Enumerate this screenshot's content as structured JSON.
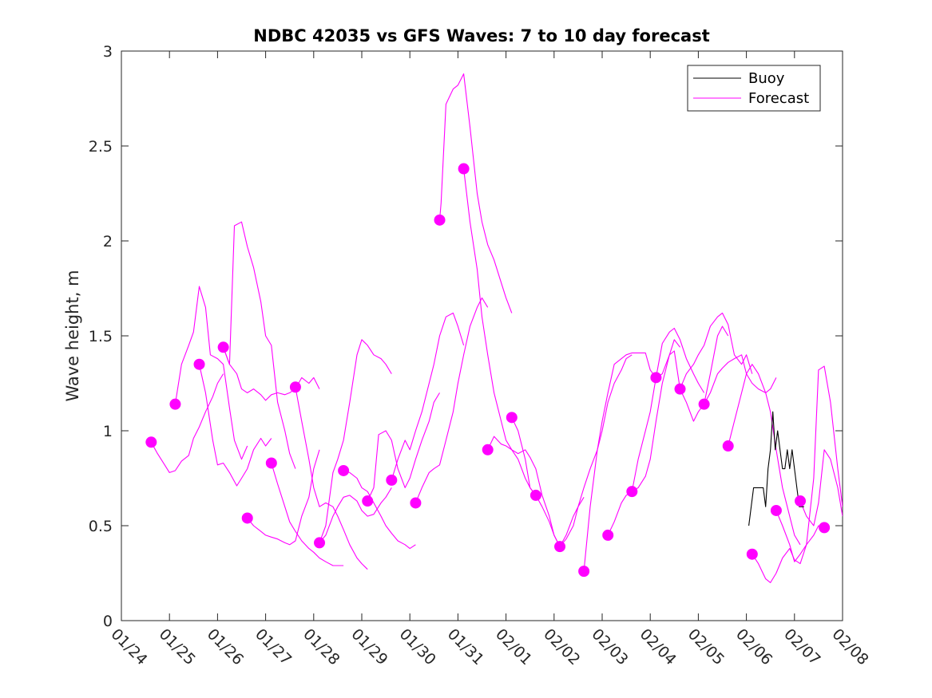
{
  "chart_data": {
    "type": "line",
    "title": "NDBC 42035 vs GFS Waves: 7 to 10 day forecast",
    "xlabel": "",
    "ylabel": "Wave height, m",
    "xlim": [
      0,
      15
    ],
    "ylim": [
      0,
      3
    ],
    "x_tick_labels": [
      "01/24",
      "01/25",
      "01/26",
      "01/27",
      "01/28",
      "01/29",
      "01/30",
      "01/31",
      "02/01",
      "02/02",
      "02/03",
      "02/04",
      "02/05",
      "02/06",
      "02/07",
      "02/08"
    ],
    "y_ticks": [
      0,
      0.5,
      1,
      1.5,
      2,
      2.5,
      3
    ],
    "y_tick_labels": [
      "0",
      "0.5",
      "1",
      "1.5",
      "2",
      "2.5",
      "3"
    ],
    "legend": {
      "placement": "top-right",
      "entries": [
        {
          "name": "Buoy",
          "color": "#000000"
        },
        {
          "name": "Forecast",
          "color": "#ff00ff"
        }
      ]
    },
    "colors": {
      "buoy": "#000000",
      "forecast": "#ff00ff"
    },
    "start_markers": {
      "name": "Forecast start",
      "x": [
        0.62,
        1.12,
        1.62,
        2.12,
        2.62,
        3.12,
        3.62,
        4.12,
        4.62,
        5.12,
        5.62,
        6.12,
        6.62,
        7.12,
        7.62,
        8.12,
        8.62,
        9.12,
        9.62,
        10.12,
        10.62,
        11.12,
        11.62,
        12.12,
        12.62,
        13.12,
        13.62,
        14.12,
        14.62
      ],
      "y": [
        0.94,
        1.14,
        1.35,
        1.44,
        0.54,
        0.83,
        1.23,
        0.41,
        0.79,
        0.63,
        0.74,
        0.62,
        2.11,
        2.38,
        0.9,
        1.07,
        0.66,
        0.39,
        0.26,
        0.45,
        0.68,
        1.28,
        1.22,
        1.14,
        0.92,
        0.35,
        0.58,
        0.63,
        0.49
      ]
    },
    "series": [
      {
        "name": "Forecast",
        "x": [
          0.62,
          0.75,
          0.9,
          1.0,
          1.12,
          1.25,
          1.4,
          1.5,
          1.62,
          1.75,
          1.9,
          2.0,
          2.12
        ],
        "y": [
          0.94,
          0.88,
          0.82,
          0.78,
          0.79,
          0.84,
          0.87,
          0.96,
          1.02,
          1.1,
          1.18,
          1.25,
          1.3
        ]
      },
      {
        "name": "Forecast",
        "x": [
          1.12,
          1.25,
          1.4,
          1.5,
          1.62,
          1.75,
          1.85,
          2.0,
          2.12,
          2.25,
          2.35,
          2.5,
          2.62
        ],
        "y": [
          1.14,
          1.35,
          1.45,
          1.52,
          1.76,
          1.65,
          1.4,
          1.38,
          1.35,
          1.12,
          0.95,
          0.85,
          0.92
        ]
      },
      {
        "name": "Forecast",
        "x": [
          1.62,
          1.75,
          1.9,
          2.0,
          2.12,
          2.25,
          2.4,
          2.5,
          2.62,
          2.75,
          2.9,
          3.0,
          3.12
        ],
        "y": [
          1.35,
          1.2,
          0.95,
          0.82,
          0.83,
          0.78,
          0.71,
          0.75,
          0.8,
          0.9,
          0.96,
          0.92,
          0.96
        ]
      },
      {
        "name": "Forecast",
        "x": [
          2.12,
          2.25,
          2.35,
          2.5,
          2.62,
          2.75,
          2.9,
          3.0,
          3.12,
          3.25,
          3.4,
          3.5,
          3.62
        ],
        "y": [
          1.44,
          1.35,
          2.08,
          2.1,
          1.97,
          1.86,
          1.68,
          1.5,
          1.45,
          1.15,
          1.0,
          0.88,
          0.8
        ]
      },
      {
        "name": "Forecast",
        "x": [
          2.12,
          2.25,
          2.4,
          2.5,
          2.62,
          2.75,
          2.9,
          3.0,
          3.12,
          3.25,
          3.4,
          3.5,
          3.62,
          3.75,
          3.9,
          4.0,
          4.12
        ],
        "y": [
          1.44,
          1.35,
          1.3,
          1.22,
          1.2,
          1.22,
          1.19,
          1.16,
          1.19,
          1.2,
          1.19,
          1.2,
          1.22,
          1.28,
          1.25,
          1.28,
          1.22
        ]
      },
      {
        "name": "Forecast",
        "x": [
          2.62,
          2.75,
          2.9,
          3.0,
          3.12,
          3.25,
          3.4,
          3.5,
          3.62,
          3.75,
          3.9,
          4.0,
          4.12
        ],
        "y": [
          0.54,
          0.5,
          0.47,
          0.45,
          0.44,
          0.43,
          0.41,
          0.4,
          0.42,
          0.55,
          0.65,
          0.8,
          0.9
        ]
      },
      {
        "name": "Forecast",
        "x": [
          3.12,
          3.25,
          3.4,
          3.5,
          3.62,
          3.75,
          3.9,
          4.0,
          4.12,
          4.25,
          4.4,
          4.5,
          4.62
        ],
        "y": [
          0.83,
          0.72,
          0.6,
          0.52,
          0.47,
          0.42,
          0.38,
          0.36,
          0.33,
          0.31,
          0.29,
          0.29,
          0.29
        ]
      },
      {
        "name": "Forecast",
        "x": [
          3.62,
          3.75,
          3.9,
          4.0,
          4.12,
          4.25,
          4.4,
          4.5,
          4.62,
          4.75,
          4.9,
          5.0,
          5.12
        ],
        "y": [
          1.23,
          1.05,
          0.85,
          0.7,
          0.6,
          0.62,
          0.6,
          0.55,
          0.48,
          0.4,
          0.33,
          0.3,
          0.27
        ]
      },
      {
        "name": "Forecast",
        "x": [
          4.12,
          4.25,
          4.4,
          4.5,
          4.62,
          4.75,
          4.9,
          5.0,
          5.12,
          5.25,
          5.4,
          5.5,
          5.62
        ],
        "y": [
          0.41,
          0.45,
          0.55,
          0.6,
          0.65,
          0.66,
          0.63,
          0.58,
          0.55,
          0.56,
          0.62,
          0.65,
          0.7
        ]
      },
      {
        "name": "Forecast",
        "x": [
          4.12,
          4.25,
          4.4,
          4.5,
          4.62,
          4.75,
          4.9,
          5.0,
          5.12,
          5.25,
          5.4,
          5.5,
          5.62
        ],
        "y": [
          0.41,
          0.5,
          0.78,
          0.85,
          0.95,
          1.15,
          1.4,
          1.48,
          1.45,
          1.4,
          1.38,
          1.35,
          1.3
        ]
      },
      {
        "name": "Forecast",
        "x": [
          4.62,
          4.75,
          4.9,
          5.0,
          5.12,
          5.25,
          5.4,
          5.5,
          5.62,
          5.75,
          5.9,
          6.0,
          6.12
        ],
        "y": [
          0.79,
          0.78,
          0.75,
          0.7,
          0.68,
          0.62,
          0.55,
          0.5,
          0.46,
          0.42,
          0.4,
          0.38,
          0.4
        ]
      },
      {
        "name": "Forecast",
        "x": [
          5.12,
          5.25,
          5.35,
          5.5,
          5.62,
          5.75,
          5.9,
          6.0,
          6.12,
          6.25,
          6.4,
          6.5,
          6.62
        ],
        "y": [
          0.63,
          0.7,
          0.98,
          1.0,
          0.95,
          0.8,
          0.7,
          0.75,
          0.85,
          0.95,
          1.05,
          1.15,
          1.2
        ]
      },
      {
        "name": "Forecast",
        "x": [
          5.62,
          5.75,
          5.9,
          6.0,
          6.12,
          6.25,
          6.4,
          6.5,
          6.62,
          6.75,
          6.9,
          7.0,
          7.12
        ],
        "y": [
          0.74,
          0.85,
          0.95,
          0.9,
          1.0,
          1.1,
          1.25,
          1.35,
          1.5,
          1.6,
          1.62,
          1.55,
          1.45
        ]
      },
      {
        "name": "Forecast",
        "x": [
          6.12,
          6.25,
          6.4,
          6.5,
          6.62,
          6.75,
          6.9,
          7.0,
          7.12,
          7.25,
          7.4,
          7.5,
          7.62
        ],
        "y": [
          0.62,
          0.7,
          0.78,
          0.8,
          0.82,
          0.95,
          1.1,
          1.25,
          1.4,
          1.55,
          1.65,
          1.7,
          1.65
        ]
      },
      {
        "name": "Forecast",
        "x": [
          6.62,
          6.65,
          6.75,
          6.9,
          7.0,
          7.12,
          7.25,
          7.4,
          7.5,
          7.62,
          7.75,
          7.9,
          8.0,
          8.12
        ],
        "y": [
          2.11,
          2.2,
          2.72,
          2.8,
          2.82,
          2.88,
          2.6,
          2.25,
          2.1,
          1.98,
          1.9,
          1.78,
          1.7,
          1.62
        ]
      },
      {
        "name": "Forecast",
        "x": [
          7.12,
          7.25,
          7.4,
          7.5,
          7.62,
          7.75,
          7.9,
          8.0,
          8.12,
          8.25,
          8.4,
          8.5,
          8.62
        ],
        "y": [
          2.38,
          2.1,
          1.85,
          1.6,
          1.4,
          1.2,
          1.05,
          0.95,
          0.9,
          0.85,
          0.75,
          0.7,
          0.66
        ]
      },
      {
        "name": "Forecast",
        "x": [
          7.62,
          7.75,
          7.9,
          8.0,
          8.12,
          8.25,
          8.4,
          8.5,
          8.62,
          8.75,
          8.9,
          9.0,
          9.12
        ],
        "y": [
          0.9,
          0.97,
          0.93,
          0.92,
          0.9,
          0.88,
          0.9,
          0.86,
          0.8,
          0.66,
          0.55,
          0.45,
          0.39
        ]
      },
      {
        "name": "Forecast",
        "x": [
          8.12,
          8.25,
          8.4,
          8.5,
          8.62,
          8.75,
          8.9,
          9.0,
          9.12,
          9.25,
          9.4,
          9.5,
          9.62
        ],
        "y": [
          1.07,
          1.0,
          0.85,
          0.7,
          0.66,
          0.6,
          0.52,
          0.45,
          0.39,
          0.43,
          0.5,
          0.6,
          0.65
        ]
      },
      {
        "name": "Forecast",
        "x": [
          9.12,
          9.25,
          9.4,
          9.5,
          9.62,
          9.75,
          9.9,
          10.0,
          10.12,
          10.25,
          10.4,
          10.5,
          10.62
        ],
        "y": [
          0.39,
          0.45,
          0.55,
          0.6,
          0.7,
          0.8,
          0.9,
          1.0,
          1.15,
          1.25,
          1.32,
          1.38,
          1.4
        ]
      },
      {
        "name": "Forecast",
        "x": [
          9.62,
          9.75,
          9.9,
          10.0,
          10.12,
          10.25,
          10.4,
          10.5,
          10.62,
          10.75,
          10.9,
          11.0,
          11.12
        ],
        "y": [
          0.26,
          0.6,
          0.9,
          1.05,
          1.2,
          1.35,
          1.38,
          1.4,
          1.41,
          1.41,
          1.41,
          1.32,
          1.28
        ]
      },
      {
        "name": "Forecast",
        "x": [
          10.12,
          10.25,
          10.4,
          10.5,
          10.62,
          10.75,
          10.9,
          11.0,
          11.12,
          11.25,
          11.4,
          11.5,
          11.62
        ],
        "y": [
          0.45,
          0.52,
          0.62,
          0.66,
          0.68,
          0.7,
          0.76,
          0.85,
          1.05,
          1.25,
          1.4,
          1.48,
          1.44
        ]
      },
      {
        "name": "Forecast",
        "x": [
          10.62,
          10.75,
          10.9,
          11.0,
          11.12,
          11.25,
          11.4,
          11.5,
          11.62,
          11.75,
          11.9,
          12.0,
          12.12
        ],
        "y": [
          0.68,
          0.85,
          1.0,
          1.1,
          1.28,
          1.46,
          1.52,
          1.54,
          1.48,
          1.38,
          1.3,
          1.25,
          1.2
        ]
      },
      {
        "name": "Forecast",
        "x": [
          11.12,
          11.25,
          11.4,
          11.5,
          11.62,
          11.75,
          11.9,
          12.0,
          12.12,
          12.25,
          12.4,
          12.5,
          12.62
        ],
        "y": [
          1.28,
          1.3,
          1.4,
          1.42,
          1.22,
          1.15,
          1.05,
          1.1,
          1.14,
          1.3,
          1.5,
          1.55,
          1.5
        ]
      },
      {
        "name": "Forecast",
        "x": [
          11.62,
          11.75,
          11.9,
          12.0,
          12.12,
          12.25,
          12.4,
          12.5,
          12.62,
          12.75,
          12.9,
          13.0,
          13.12
        ],
        "y": [
          1.22,
          1.3,
          1.35,
          1.4,
          1.45,
          1.55,
          1.6,
          1.62,
          1.56,
          1.4,
          1.35,
          1.4,
          1.3
        ]
      },
      {
        "name": "Forecast",
        "x": [
          12.12,
          12.25,
          12.4,
          12.5,
          12.62,
          12.75,
          12.9,
          13.0,
          13.12,
          13.25,
          13.4,
          13.5,
          13.62
        ],
        "y": [
          1.14,
          1.2,
          1.3,
          1.33,
          1.36,
          1.38,
          1.4,
          1.3,
          1.25,
          1.22,
          1.2,
          1.22,
          1.28
        ]
      },
      {
        "name": "Forecast",
        "x": [
          12.62,
          12.75,
          12.9,
          13.0,
          13.12,
          13.25,
          13.4,
          13.5,
          13.62,
          13.75,
          13.9,
          14.0,
          14.12
        ],
        "y": [
          0.92,
          1.05,
          1.2,
          1.3,
          1.35,
          1.3,
          1.2,
          1.1,
          0.9,
          0.7,
          0.55,
          0.45,
          0.4
        ]
      },
      {
        "name": "Forecast",
        "x": [
          13.12,
          13.25,
          13.4,
          13.5,
          13.62,
          13.75,
          13.9,
          14.0,
          14.12,
          14.25,
          14.4,
          14.5,
          14.62
        ],
        "y": [
          0.35,
          0.3,
          0.22,
          0.2,
          0.25,
          0.33,
          0.38,
          0.32,
          0.3,
          0.4,
          0.45,
          0.5,
          0.49
        ]
      },
      {
        "name": "Forecast",
        "x": [
          13.62,
          13.75,
          13.9,
          14.0,
          14.12,
          14.25,
          14.4,
          14.5,
          14.62,
          14.75,
          14.9,
          15.0
        ],
        "y": [
          0.58,
          0.5,
          0.4,
          0.31,
          0.35,
          0.4,
          0.75,
          1.32,
          1.34,
          1.15,
          0.8,
          0.6
        ]
      },
      {
        "name": "Forecast",
        "x": [
          14.12,
          14.25,
          14.4,
          14.5,
          14.62,
          14.75,
          14.9,
          15.0
        ],
        "y": [
          0.63,
          0.55,
          0.5,
          0.62,
          0.9,
          0.85,
          0.7,
          0.55
        ]
      },
      {
        "name": "Buoy",
        "x": [
          13.05,
          13.1,
          13.15,
          13.2,
          13.25,
          13.3,
          13.35,
          13.4,
          13.45,
          13.5,
          13.55,
          13.6,
          13.65,
          13.7,
          13.75,
          13.8,
          13.85,
          13.9,
          13.95,
          14.0,
          14.05,
          14.1,
          14.15,
          14.2
        ],
        "y": [
          0.5,
          0.6,
          0.7,
          0.7,
          0.7,
          0.7,
          0.7,
          0.6,
          0.8,
          0.9,
          1.1,
          0.9,
          1.0,
          0.9,
          0.8,
          0.8,
          0.9,
          0.8,
          0.9,
          0.8,
          0.7,
          0.6,
          0.6,
          0.6
        ]
      }
    ]
  }
}
